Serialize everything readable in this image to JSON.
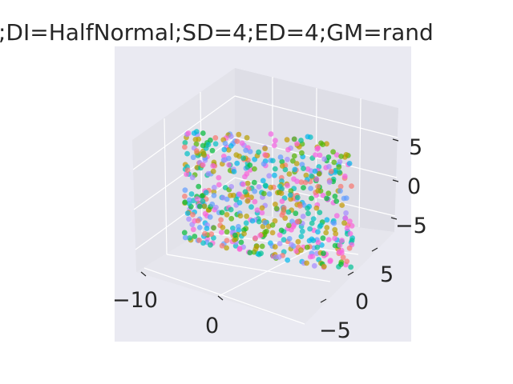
{
  "chart_data": {
    "type": "scatter",
    "projection": "3d",
    "title": ";DI=HalfNormal;SD=4;ED=4;GM=rand",
    "background": "#eaeaf2",
    "grid": true,
    "x_ticks": [
      "−10",
      "0"
    ],
    "y_ticks": [
      "−5",
      "0",
      "5"
    ],
    "z_ticks": [
      "−5",
      "0",
      "5"
    ],
    "xlim": [
      -14,
      10
    ],
    "ylim": [
      -8,
      9
    ],
    "zlim": [
      -7,
      9
    ],
    "point_palette": [
      "#f564e3",
      "#b79f00",
      "#00ba38",
      "#00bfc4",
      "#619cff",
      "#f8766d",
      "#c49a00",
      "#53b400",
      "#fb61d7",
      "#00b6eb",
      "#a58aff",
      "#00c094"
    ],
    "point_alpha": 0.7,
    "n_points": 600,
    "note_values": "Point cloud of ~600 random points; individual coordinates not readable from image."
  }
}
